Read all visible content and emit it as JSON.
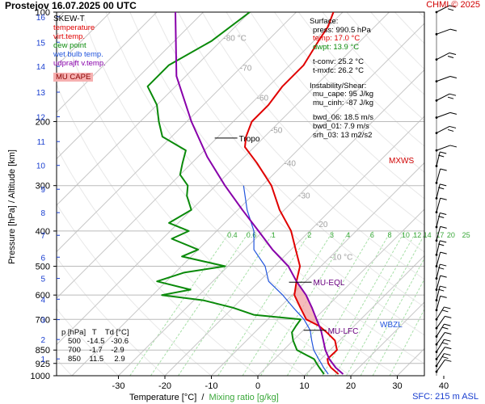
{
  "title": "Prostejov    16.07.2025 00 UTC",
  "credit": "CHMI © 2025",
  "sfc_label": "SFC: 215 m ASL",
  "axes": {
    "y_label": "Pressure [hPa]  /  Altitude [km]",
    "x_label_temp": "Temperature [°C]",
    "x_label_sep": "  /  ",
    "x_label_mix": "Mixing ratio [g/kg]"
  },
  "legend": {
    "title": "SKEW-T",
    "items": [
      {
        "label": "temperature",
        "color": "#e00000"
      },
      {
        "label": "virt.temp.",
        "color": "#e00000"
      },
      {
        "label": "dew point",
        "color": "#0a8a0a"
      },
      {
        "label": "wet bulb temp.",
        "color": "#2255dd"
      },
      {
        "label": "udprajft v.temp.",
        "color": "#8800aa"
      }
    ],
    "cape_label": "MU CAPE"
  },
  "surface": {
    "title": "Surface:",
    "press": "press: 990.5 hPa",
    "temp": "temp: 17.0 °C",
    "dwpt": "dwpt: 13.9 °C",
    "tconv": "t-conv: 25.2 °C",
    "tmxfc": "t-mxfc: 26.2 °C"
  },
  "instability": {
    "title": "Instability/Shear:",
    "mu_cape": "mu_cape: 95 J/kg",
    "mu_cinh": "mu_cinh: -87 J/kg",
    "bwd_06": "bwd_06: 18.5 m/s",
    "bwd_01": "bwd_01: 7.9 m/s",
    "srh_03": "srh_03: 13 m2/s2"
  },
  "table": {
    "header": "p [hPa]   T    Td [°C]",
    "rows": [
      "500   -14.5   -30.6",
      "700    -1.7    -2.9",
      "850    11.5     2.9"
    ]
  },
  "annotations": {
    "tropo": "Tropo",
    "mu_eql": "MU-EQL",
    "mu_lfc": "MU-LFC",
    "wbzl": "WBZL",
    "mxws": "MXWS"
  },
  "chart_data": {
    "type": "line",
    "subtype": "skew-t log-p",
    "x_ticks": [
      -30,
      -20,
      -10,
      0,
      10,
      20,
      30,
      40
    ],
    "pressure_ticks": [
      100,
      200,
      300,
      400,
      500,
      600,
      700,
      850,
      925,
      1000
    ],
    "altitude_km_ticks": [
      1,
      2,
      3,
      4,
      5,
      6,
      7,
      8,
      9,
      10,
      11,
      12,
      13,
      14,
      15,
      16
    ],
    "isotherm_labels": [
      "-80 °C",
      "-70",
      "-60",
      "-50",
      "-40",
      "-30",
      "-20",
      "-10 °C"
    ],
    "isotherm_values": [
      -80,
      -70,
      -60,
      -50,
      -40,
      -30,
      -20,
      -10
    ],
    "mixing_ratio_labels": [
      "0.4",
      "0.6",
      "1",
      "2",
      "3",
      "4",
      "6",
      "8",
      "10",
      "12",
      "14",
      "17",
      "20",
      "25"
    ],
    "series": [
      {
        "name": "temperature",
        "color": "#e00000",
        "points": [
          [
            990,
            17
          ],
          [
            950,
            14
          ],
          [
            925,
            12.5
          ],
          [
            900,
            11.4
          ],
          [
            850,
            11.5
          ],
          [
            800,
            9
          ],
          [
            760,
            5.5
          ],
          [
            730,
            2.5
          ],
          [
            700,
            -1.7
          ],
          [
            650,
            -5.5
          ],
          [
            600,
            -9.5
          ],
          [
            550,
            -12
          ],
          [
            500,
            -14.5
          ],
          [
            450,
            -19
          ],
          [
            400,
            -24
          ],
          [
            350,
            -31
          ],
          [
            300,
            -38
          ],
          [
            260,
            -46
          ],
          [
            235,
            -52
          ],
          [
            220,
            -54
          ],
          [
            200,
            -56
          ],
          [
            180,
            -56
          ],
          [
            160,
            -57
          ],
          [
            140,
            -57
          ],
          [
            120,
            -59
          ],
          [
            110,
            -60
          ],
          [
            100,
            -62
          ]
        ]
      },
      {
        "name": "dew point",
        "color": "#0a8a0a",
        "points": [
          [
            990,
            13.9
          ],
          [
            950,
            11.5
          ],
          [
            925,
            10
          ],
          [
            900,
            8.5
          ],
          [
            850,
            2.9
          ],
          [
            800,
            0
          ],
          [
            760,
            -2
          ],
          [
            730,
            -2.5
          ],
          [
            700,
            -2.9
          ],
          [
            680,
            -14
          ],
          [
            650,
            -20
          ],
          [
            620,
            -28
          ],
          [
            600,
            -38
          ],
          [
            580,
            -33
          ],
          [
            550,
            -42
          ],
          [
            520,
            -38
          ],
          [
            500,
            -30.6
          ],
          [
            470,
            -42
          ],
          [
            450,
            -40
          ],
          [
            420,
            -48
          ],
          [
            400,
            -46
          ],
          [
            380,
            -52
          ],
          [
            350,
            -50
          ],
          [
            320,
            -54
          ],
          [
            300,
            -56
          ],
          [
            280,
            -60
          ],
          [
            260,
            -62
          ],
          [
            240,
            -64
          ],
          [
            220,
            -72
          ],
          [
            200,
            -76
          ],
          [
            180,
            -80
          ],
          [
            160,
            -86
          ],
          [
            140,
            -86
          ],
          [
            120,
            -82
          ],
          [
            100,
            -80
          ]
        ]
      },
      {
        "name": "wet bulb temp.",
        "color": "#2255dd",
        "points": [
          [
            990,
            14.8
          ],
          [
            950,
            12.4
          ],
          [
            925,
            11
          ],
          [
            900,
            9.5
          ],
          [
            850,
            6.5
          ],
          [
            800,
            4
          ],
          [
            750,
            1.5
          ],
          [
            700,
            -2.2
          ],
          [
            650,
            -7
          ],
          [
            600,
            -12
          ],
          [
            550,
            -18
          ],
          [
            500,
            -22
          ],
          [
            450,
            -28
          ],
          [
            400,
            -32
          ],
          [
            350,
            -38
          ],
          [
            300,
            -44
          ]
        ]
      },
      {
        "name": "udprajft v.temp.",
        "color": "#8800aa",
        "points": [
          [
            990,
            18
          ],
          [
            950,
            15
          ],
          [
            900,
            11.8
          ],
          [
            850,
            9
          ],
          [
            800,
            6.5
          ],
          [
            750,
            3.8
          ],
          [
            700,
            0.5
          ],
          [
            650,
            -3
          ],
          [
            600,
            -7
          ],
          [
            550,
            -12
          ],
          [
            500,
            -17
          ],
          [
            450,
            -24
          ],
          [
            400,
            -31
          ],
          [
            350,
            -39
          ],
          [
            300,
            -48
          ],
          [
            250,
            -58
          ],
          [
            200,
            -69
          ],
          [
            150,
            -82
          ],
          [
            100,
            -96
          ]
        ]
      }
    ],
    "wind_pressures": [
      100,
      115,
      135,
      155,
      175,
      195,
      215,
      240,
      265,
      295,
      325,
      355,
      390,
      425,
      465,
      500,
      540,
      580,
      620,
      660,
      700,
      740,
      780,
      820,
      860,
      900,
      940,
      975
    ]
  }
}
